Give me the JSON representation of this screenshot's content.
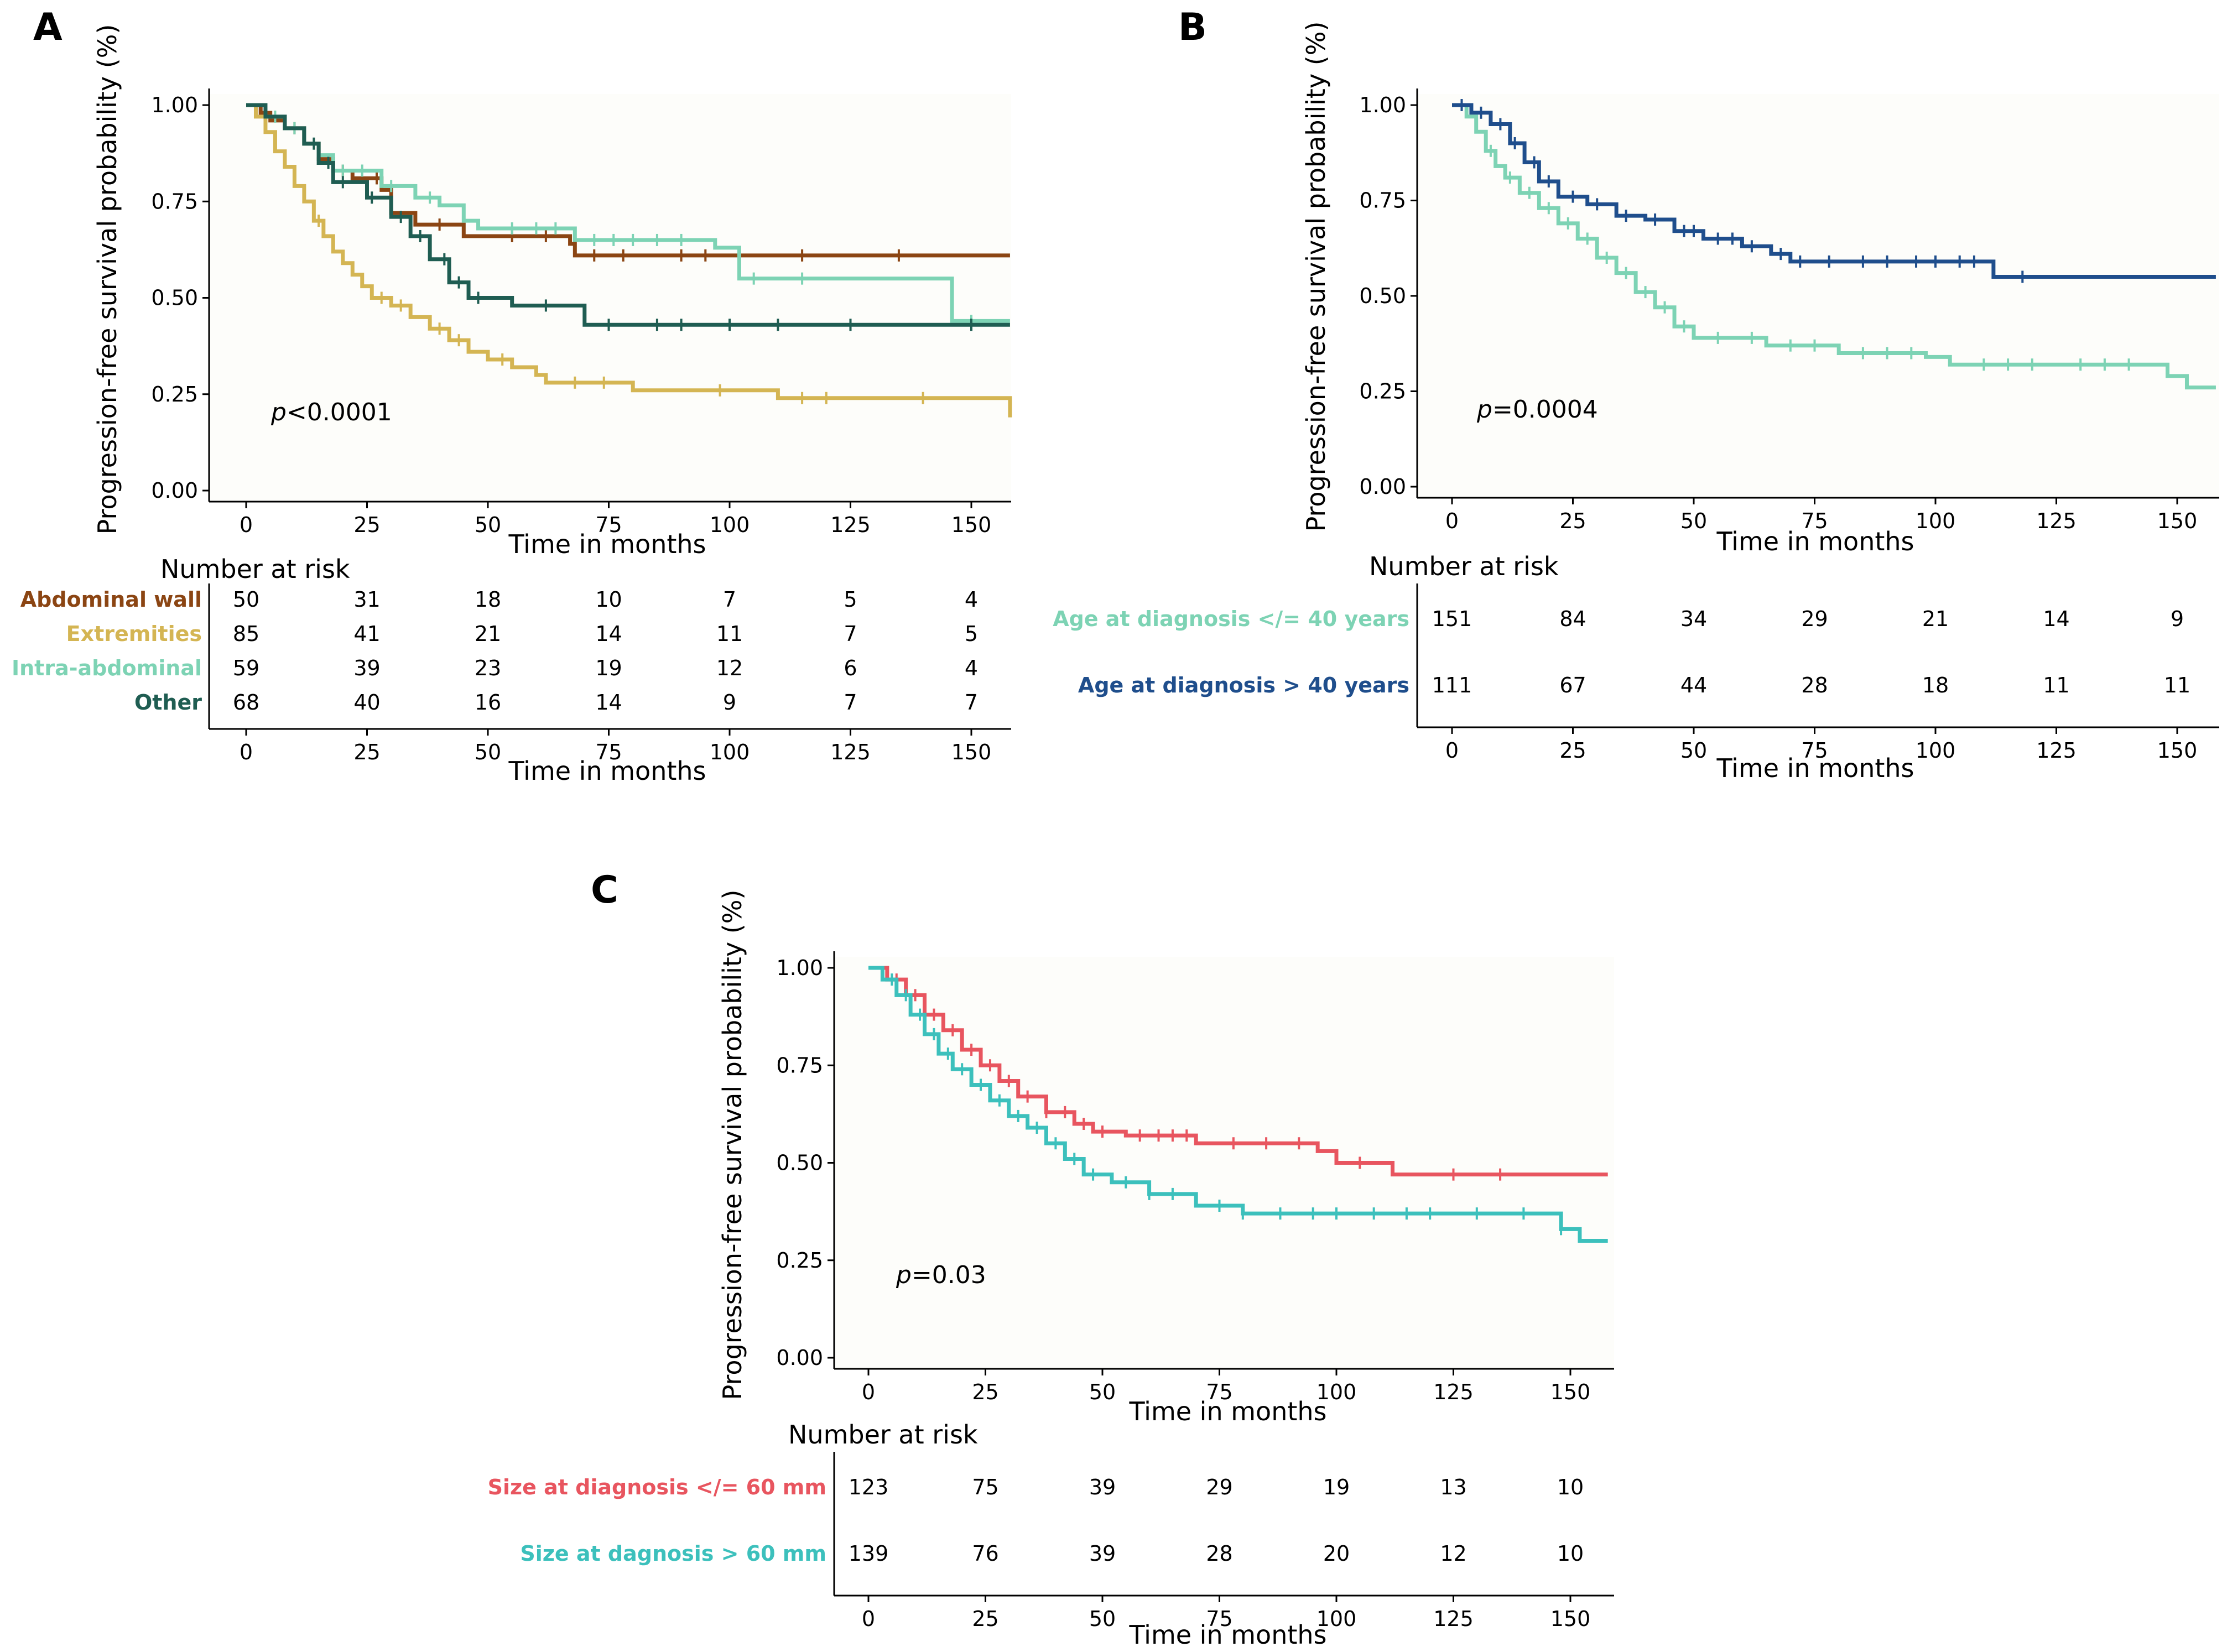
{
  "figure": {
    "background": "#ffffff",
    "panel_bg": "#fdfdfa"
  },
  "chart_data": [
    {
      "panel": "A",
      "type": "line",
      "subtype": "kaplan-meier",
      "ylabel": "Progression-free survival probability (%)",
      "xlabel": "Time in months",
      "ylim": [
        0,
        1
      ],
      "xlim": [
        0,
        158
      ],
      "yticks": [
        "0.00",
        "0.25",
        "0.50",
        "0.75",
        "1.00"
      ],
      "xticks": [
        "0",
        "25",
        "50",
        "75",
        "100",
        "125",
        "150"
      ],
      "pvalue_prefix": "p",
      "pvalue": "<0.0001",
      "risk_table": {
        "title": "Number at risk",
        "xlabel": "Time in months",
        "times": [
          0,
          25,
          50,
          75,
          100,
          125,
          150
        ]
      },
      "series": [
        {
          "name": "Abdominal wall",
          "color": "#8b4513",
          "risk": [
            "50",
            "31",
            "18",
            "10",
            "7",
            "5",
            "4"
          ],
          "steps": [
            [
              0,
              1
            ],
            [
              3,
              0.98
            ],
            [
              5,
              0.96
            ],
            [
              8,
              0.94
            ],
            [
              12,
              0.9
            ],
            [
              15,
              0.86
            ],
            [
              18,
              0.83
            ],
            [
              22,
              0.81
            ],
            [
              28,
              0.78
            ],
            [
              30,
              0.72
            ],
            [
              35,
              0.69
            ],
            [
              45,
              0.66
            ],
            [
              67,
              0.64
            ],
            [
              68,
              0.61
            ],
            [
              158,
              0.61
            ]
          ],
          "censor": [
            10,
            20,
            27,
            40,
            55,
            62,
            72,
            78,
            90,
            95,
            115,
            135
          ]
        },
        {
          "name": "Extremities",
          "color": "#d4b553",
          "risk": [
            "85",
            "41",
            "21",
            "14",
            "11",
            "7",
            "5"
          ],
          "steps": [
            [
              0,
              1
            ],
            [
              2,
              0.97
            ],
            [
              4,
              0.93
            ],
            [
              6,
              0.88
            ],
            [
              8,
              0.84
            ],
            [
              10,
              0.79
            ],
            [
              12,
              0.75
            ],
            [
              14,
              0.7
            ],
            [
              16,
              0.66
            ],
            [
              18,
              0.62
            ],
            [
              20,
              0.59
            ],
            [
              22,
              0.56
            ],
            [
              24,
              0.53
            ],
            [
              26,
              0.5
            ],
            [
              30,
              0.48
            ],
            [
              34,
              0.45
            ],
            [
              38,
              0.42
            ],
            [
              42,
              0.39
            ],
            [
              46,
              0.36
            ],
            [
              50,
              0.34
            ],
            [
              55,
              0.32
            ],
            [
              60,
              0.3
            ],
            [
              62,
              0.28
            ],
            [
              80,
              0.26
            ],
            [
              110,
              0.24
            ],
            [
              158,
              0.19
            ]
          ],
          "censor": [
            15,
            28,
            32,
            40,
            44,
            53,
            68,
            74,
            98,
            115,
            120,
            140
          ]
        },
        {
          "name": "Intra-abdominal",
          "color": "#7dd3b4",
          "risk": [
            "59",
            "39",
            "23",
            "19",
            "12",
            "6",
            "4"
          ],
          "steps": [
            [
              0,
              1
            ],
            [
              4,
              0.97
            ],
            [
              8,
              0.94
            ],
            [
              12,
              0.9
            ],
            [
              15,
              0.87
            ],
            [
              18,
              0.83
            ],
            [
              28,
              0.79
            ],
            [
              35,
              0.76
            ],
            [
              40,
              0.74
            ],
            [
              45,
              0.7
            ],
            [
              48,
              0.68
            ],
            [
              68,
              0.65
            ],
            [
              97,
              0.63
            ],
            [
              102,
              0.55
            ],
            [
              146,
              0.44
            ],
            [
              158,
              0.44
            ]
          ],
          "censor": [
            6,
            10,
            20,
            24,
            30,
            38,
            55,
            60,
            64,
            72,
            76,
            80,
            85,
            90,
            105,
            115,
            150
          ]
        },
        {
          "name": "Other",
          "color": "#1f5d52",
          "risk": [
            "68",
            "40",
            "16",
            "14",
            "9",
            "7",
            "7"
          ],
          "steps": [
            [
              0,
              1
            ],
            [
              4,
              0.97
            ],
            [
              8,
              0.94
            ],
            [
              12,
              0.9
            ],
            [
              15,
              0.85
            ],
            [
              18,
              0.8
            ],
            [
              25,
              0.76
            ],
            [
              30,
              0.71
            ],
            [
              34,
              0.66
            ],
            [
              38,
              0.6
            ],
            [
              42,
              0.54
            ],
            [
              46,
              0.5
            ],
            [
              55,
              0.48
            ],
            [
              70,
              0.43
            ],
            [
              158,
              0.43
            ]
          ],
          "censor": [
            14,
            17,
            20,
            26,
            32,
            36,
            41,
            44,
            48,
            62,
            75,
            85,
            90,
            100,
            110,
            125,
            150
          ]
        }
      ]
    },
    {
      "panel": "B",
      "type": "line",
      "subtype": "kaplan-meier",
      "ylabel": "Progression-free survival probability (%)",
      "xlabel": "Time in months",
      "ylim": [
        0,
        1
      ],
      "xlim": [
        0,
        158
      ],
      "yticks": [
        "0.00",
        "0.25",
        "0.50",
        "0.75",
        "1.00"
      ],
      "xticks": [
        "0",
        "25",
        "50",
        "75",
        "100",
        "125",
        "150"
      ],
      "pvalue_prefix": "p",
      "pvalue": "=0.0004",
      "risk_table": {
        "title": "Number at risk",
        "xlabel": "Time in months",
        "times": [
          0,
          25,
          50,
          75,
          100,
          125,
          150
        ]
      },
      "series": [
        {
          "name": "Age at diagnosis </= 40 years",
          "color": "#7dd3b4",
          "risk": [
            "151",
            "84",
            "34",
            "29",
            "21",
            "14",
            "9"
          ],
          "steps": [
            [
              0,
              1
            ],
            [
              3,
              0.97
            ],
            [
              5,
              0.93
            ],
            [
              7,
              0.88
            ],
            [
              9,
              0.84
            ],
            [
              11,
              0.81
            ],
            [
              14,
              0.77
            ],
            [
              18,
              0.73
            ],
            [
              22,
              0.69
            ],
            [
              26,
              0.65
            ],
            [
              30,
              0.6
            ],
            [
              34,
              0.56
            ],
            [
              38,
              0.51
            ],
            [
              42,
              0.47
            ],
            [
              46,
              0.42
            ],
            [
              50,
              0.39
            ],
            [
              65,
              0.37
            ],
            [
              80,
              0.35
            ],
            [
              98,
              0.34
            ],
            [
              103,
              0.32
            ],
            [
              148,
              0.29
            ],
            [
              152,
              0.26
            ],
            [
              158,
              0.26
            ]
          ],
          "censor": [
            8,
            12,
            16,
            20,
            24,
            28,
            32,
            36,
            40,
            44,
            48,
            55,
            62,
            70,
            75,
            85,
            90,
            95,
            110,
            115,
            120,
            130,
            135,
            140
          ]
        },
        {
          "name": "Age at diagnosis > 40 years",
          "color": "#1f4e8c",
          "risk": [
            "111",
            "67",
            "44",
            "28",
            "18",
            "11",
            "11"
          ],
          "steps": [
            [
              0,
              1
            ],
            [
              4,
              0.98
            ],
            [
              8,
              0.95
            ],
            [
              12,
              0.9
            ],
            [
              15,
              0.85
            ],
            [
              18,
              0.8
            ],
            [
              22,
              0.76
            ],
            [
              28,
              0.74
            ],
            [
              34,
              0.71
            ],
            [
              40,
              0.7
            ],
            [
              46,
              0.67
            ],
            [
              52,
              0.65
            ],
            [
              60,
              0.63
            ],
            [
              66,
              0.61
            ],
            [
              70,
              0.59
            ],
            [
              112,
              0.55
            ],
            [
              158,
              0.55
            ]
          ],
          "censor": [
            2,
            6,
            10,
            13,
            17,
            20,
            25,
            30,
            36,
            42,
            48,
            50,
            55,
            58,
            62,
            68,
            72,
            78,
            85,
            90,
            96,
            100,
            105,
            108,
            118
          ]
        }
      ]
    },
    {
      "panel": "C",
      "type": "line",
      "subtype": "kaplan-meier",
      "ylabel": "Progression-free survival probability (%)",
      "xlabel": "Time in months",
      "ylim": [
        0,
        1
      ],
      "xlim": [
        0,
        158
      ],
      "yticks": [
        "0.00",
        "0.25",
        "0.50",
        "0.75",
        "1.00"
      ],
      "xticks": [
        "0",
        "25",
        "50",
        "75",
        "100",
        "125",
        "150"
      ],
      "pvalue_prefix": "p",
      "pvalue": "=0.03",
      "risk_table": {
        "title": "Number at risk",
        "xlabel": "Time in months",
        "times": [
          0,
          25,
          50,
          75,
          100,
          125,
          150
        ]
      },
      "series": [
        {
          "name": "Size at diagnosis </= 60 mm",
          "color": "#e8555f",
          "risk": [
            "123",
            "75",
            "39",
            "29",
            "19",
            "13",
            "10"
          ],
          "steps": [
            [
              0,
              1
            ],
            [
              4,
              0.97
            ],
            [
              8,
              0.93
            ],
            [
              12,
              0.88
            ],
            [
              16,
              0.84
            ],
            [
              20,
              0.79
            ],
            [
              24,
              0.75
            ],
            [
              28,
              0.71
            ],
            [
              32,
              0.67
            ],
            [
              38,
              0.63
            ],
            [
              44,
              0.6
            ],
            [
              48,
              0.58
            ],
            [
              55,
              0.57
            ],
            [
              70,
              0.55
            ],
            [
              96,
              0.53
            ],
            [
              100,
              0.5
            ],
            [
              112,
              0.47
            ],
            [
              158,
              0.47
            ]
          ],
          "censor": [
            6,
            10,
            14,
            18,
            22,
            26,
            30,
            34,
            38,
            42,
            46,
            50,
            58,
            62,
            65,
            68,
            78,
            85,
            92,
            105,
            125,
            135
          ]
        },
        {
          "name": "Size at dagnosis > 60 mm",
          "color": "#3cc0bc",
          "risk": [
            "139",
            "76",
            "39",
            "28",
            "20",
            "12",
            "10"
          ],
          "steps": [
            [
              0,
              1
            ],
            [
              3,
              0.97
            ],
            [
              6,
              0.93
            ],
            [
              9,
              0.88
            ],
            [
              12,
              0.83
            ],
            [
              15,
              0.78
            ],
            [
              18,
              0.74
            ],
            [
              22,
              0.7
            ],
            [
              26,
              0.66
            ],
            [
              30,
              0.62
            ],
            [
              34,
              0.59
            ],
            [
              38,
              0.55
            ],
            [
              42,
              0.51
            ],
            [
              46,
              0.47
            ],
            [
              52,
              0.45
            ],
            [
              60,
              0.42
            ],
            [
              70,
              0.39
            ],
            [
              80,
              0.37
            ],
            [
              148,
              0.33
            ],
            [
              152,
              0.3
            ],
            [
              158,
              0.3
            ]
          ],
          "censor": [
            5,
            8,
            11,
            14,
            17,
            20,
            24,
            28,
            32,
            36,
            40,
            44,
            48,
            55,
            60,
            65,
            75,
            80,
            88,
            95,
            100,
            108,
            115,
            120,
            130,
            140,
            148
          ]
        }
      ]
    }
  ]
}
